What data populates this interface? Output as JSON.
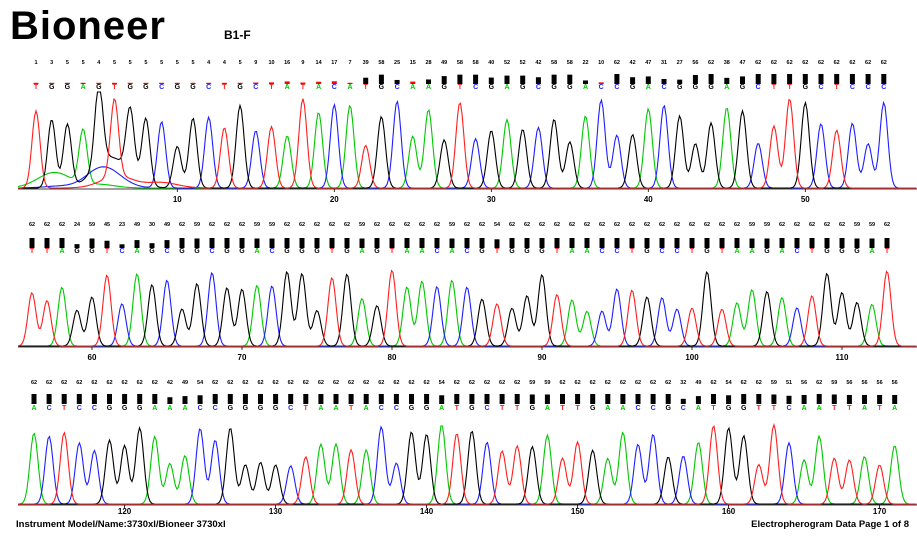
{
  "header": {
    "brand": "Bioneer",
    "sample": "B1-F"
  },
  "footer": {
    "instrument": "Instrument Model/Name:3730xl/Bioneer 3730xl",
    "page": "Electropherogram Data Page 1 of 8"
  },
  "colors": {
    "A": "#00c800",
    "C": "#1e1eff",
    "G": "#000000",
    "T": "#ff1e1e",
    "qv_low": "#ff0000",
    "qv_high": "#000000"
  },
  "chart_data": {
    "type": "line",
    "title": "",
    "xlabel": "",
    "ylabel": "",
    "grid": false,
    "rows": [
      {
        "sequence": "TGGAGTGGCGGCTGCTATACATGCAAGTCGAGCGGACCGACGGGAGCTTGCTCCC",
        "quality": [
          1,
          3,
          5,
          5,
          4,
          5,
          5,
          5,
          5,
          5,
          5,
          4,
          4,
          5,
          9,
          10,
          16,
          9,
          14,
          17,
          7,
          39,
          58,
          25,
          15,
          28,
          49,
          58,
          58,
          40,
          52,
          52,
          42,
          58,
          58,
          22,
          10,
          62,
          42,
          47,
          31,
          27,
          56,
          62,
          38,
          47,
          62,
          62,
          62,
          62,
          62,
          62,
          62,
          62,
          62
        ],
        "x_ticks": [
          10,
          20,
          30,
          40,
          50
        ],
        "x_range": [
          1,
          55
        ]
      },
      {
        "sequence": "TTAGGTCAGCGGCGGACGGGTGAGTAACACGTGGGTAACCTGCCTGTAAGACTGGGAT",
        "quality": [
          62,
          62,
          62,
          24,
          59,
          45,
          23,
          49,
          30,
          49,
          62,
          59,
          62,
          62,
          62,
          59,
          59,
          62,
          62,
          62,
          62,
          62,
          59,
          62,
          62,
          62,
          62,
          62,
          59,
          62,
          62,
          54,
          62,
          62,
          62,
          62,
          62,
          62,
          62,
          62,
          62,
          62,
          62,
          62,
          62,
          62,
          62,
          62,
          59,
          59,
          62,
          62,
          62,
          62,
          62,
          59,
          59,
          62
        ],
        "x_ticks": [
          60,
          70,
          80,
          90,
          100,
          110
        ],
        "x_range": [
          56,
          113
        ]
      },
      {
        "sequence": "ACTCCGGGAAACCGGGGCTAATACCGGATGCTTGATTGAACCGCATGGTTCAATTATA",
        "quality": [
          62,
          62,
          62,
          62,
          62,
          62,
          62,
          62,
          62,
          42,
          49,
          54,
          62,
          62,
          62,
          62,
          62,
          62,
          62,
          62,
          62,
          62,
          62,
          62,
          62,
          62,
          62,
          54,
          62,
          62,
          62,
          62,
          62,
          59,
          59,
          62,
          62,
          62,
          62,
          62,
          62,
          62,
          62,
          32,
          49,
          62,
          54,
          62,
          62,
          59,
          51,
          56,
          62,
          59,
          56,
          56,
          56,
          56
        ],
        "x_ticks": [
          120,
          130,
          140,
          150,
          160,
          170
        ],
        "x_range": [
          114,
          171
        ]
      }
    ]
  }
}
